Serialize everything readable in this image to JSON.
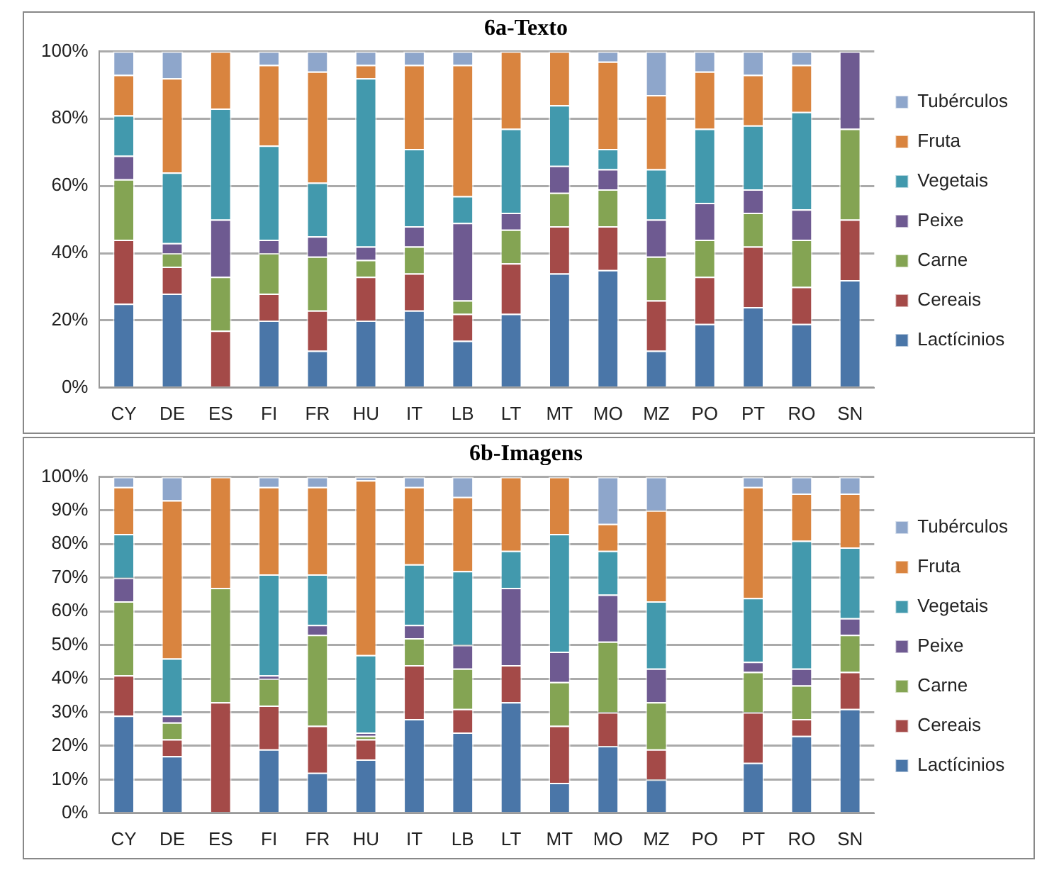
{
  "chart_data": [
    {
      "type": "bar",
      "title": "6a-Texto",
      "stacked": true,
      "legend": "right",
      "grid": "y",
      "ylim": [
        0,
        100
      ],
      "yticks": [
        {
          "value": 0,
          "label": "0%"
        },
        {
          "value": 20,
          "label": "20%"
        },
        {
          "value": 40,
          "label": "40%"
        },
        {
          "value": 60,
          "label": "60%"
        },
        {
          "value": 80,
          "label": "80%"
        },
        {
          "value": 100,
          "label": "100%"
        }
      ],
      "categories": [
        "CY",
        "DE",
        "ES",
        "FI",
        "FR",
        "HU",
        "IT",
        "LB",
        "LT",
        "MT",
        "MO",
        "MZ",
        "PO",
        "PT",
        "RO",
        "SN"
      ],
      "series": [
        {
          "name": "Lactícinios",
          "color": "#4a76a8",
          "values": [
            25,
            28,
            0,
            20,
            11,
            20,
            23,
            14,
            22,
            34,
            35,
            11,
            19,
            24,
            19,
            32
          ]
        },
        {
          "name": "Cereais",
          "color": "#a44a48",
          "values": [
            19,
            8,
            17,
            8,
            12,
            13,
            11,
            8,
            15,
            14,
            13,
            15,
            14,
            18,
            11,
            18
          ]
        },
        {
          "name": "Carne",
          "color": "#84a453",
          "values": [
            18,
            4,
            16,
            12,
            16,
            5,
            8,
            4,
            10,
            10,
            11,
            13,
            11,
            10,
            14,
            27
          ]
        },
        {
          "name": "Peixe",
          "color": "#6e5a91",
          "values": [
            7,
            3,
            17,
            4,
            6,
            4,
            6,
            23,
            5,
            8,
            6,
            11,
            11,
            7,
            9,
            23
          ]
        },
        {
          "name": "Vegetais",
          "color": "#4299ad",
          "values": [
            12,
            21,
            33,
            28,
            16,
            50,
            23,
            8,
            25,
            18,
            6,
            15,
            22,
            19,
            29,
            0
          ]
        },
        {
          "name": "Fruta",
          "color": "#d9843f",
          "values": [
            12,
            28,
            17,
            24,
            33,
            4,
            25,
            39,
            23,
            16,
            26,
            22,
            17,
            15,
            14,
            0
          ]
        },
        {
          "name": "Tubérculos",
          "color": "#8ea6cb",
          "values": [
            7,
            8,
            0,
            4,
            6,
            4,
            4,
            4,
            0,
            0,
            3,
            13,
            6,
            7,
            4,
            0
          ]
        }
      ]
    },
    {
      "type": "bar",
      "title": "6b-Imagens",
      "stacked": true,
      "legend": "right",
      "grid": "y",
      "ylim": [
        0,
        100
      ],
      "yticks": [
        {
          "value": 0,
          "label": "0%"
        },
        {
          "value": 10,
          "label": "10%"
        },
        {
          "value": 20,
          "label": "20%"
        },
        {
          "value": 30,
          "label": "30%"
        },
        {
          "value": 40,
          "label": "40%"
        },
        {
          "value": 50,
          "label": "50%"
        },
        {
          "value": 60,
          "label": "60%"
        },
        {
          "value": 70,
          "label": "70%"
        },
        {
          "value": 80,
          "label": "80%"
        },
        {
          "value": 90,
          "label": "90%"
        },
        {
          "value": 100,
          "label": "100%"
        }
      ],
      "categories": [
        "CY",
        "DE",
        "ES",
        "FI",
        "FR",
        "HU",
        "IT",
        "LB",
        "LT",
        "MT",
        "MO",
        "MZ",
        "PO",
        "PT",
        "RO",
        "SN"
      ],
      "series": [
        {
          "name": "Lactícinios",
          "color": "#4a76a8",
          "values": [
            29,
            17,
            0,
            19,
            12,
            16,
            28,
            24,
            33,
            9,
            20,
            10,
            null,
            15,
            23,
            31
          ]
        },
        {
          "name": "Cereais",
          "color": "#a44a48",
          "values": [
            12,
            5,
            33,
            13,
            14,
            6,
            16,
            7,
            11,
            17,
            10,
            9,
            null,
            15,
            5,
            11
          ]
        },
        {
          "name": "Carne",
          "color": "#84a453",
          "values": [
            22,
            5,
            34,
            8,
            27,
            1,
            8,
            12,
            0,
            13,
            21,
            14,
            null,
            12,
            10,
            11
          ]
        },
        {
          "name": "Peixe",
          "color": "#6e5a91",
          "values": [
            7,
            2,
            0,
            1,
            3,
            1,
            4,
            7,
            23,
            9,
            14,
            10,
            null,
            3,
            5,
            5
          ]
        },
        {
          "name": "Vegetais",
          "color": "#4299ad",
          "values": [
            13,
            17,
            0,
            30,
            15,
            23,
            18,
            22,
            11,
            35,
            13,
            20,
            null,
            19,
            38,
            21
          ]
        },
        {
          "name": "Fruta",
          "color": "#d9843f",
          "values": [
            14,
            47,
            33,
            26,
            26,
            52,
            23,
            22,
            22,
            17,
            8,
            27,
            null,
            33,
            14,
            16
          ]
        },
        {
          "name": "Tubérculos",
          "color": "#8ea6cb",
          "values": [
            3,
            7,
            0,
            3,
            3,
            1,
            3,
            6,
            0,
            0,
            14,
            10,
            null,
            3,
            5,
            5
          ]
        }
      ]
    }
  ]
}
